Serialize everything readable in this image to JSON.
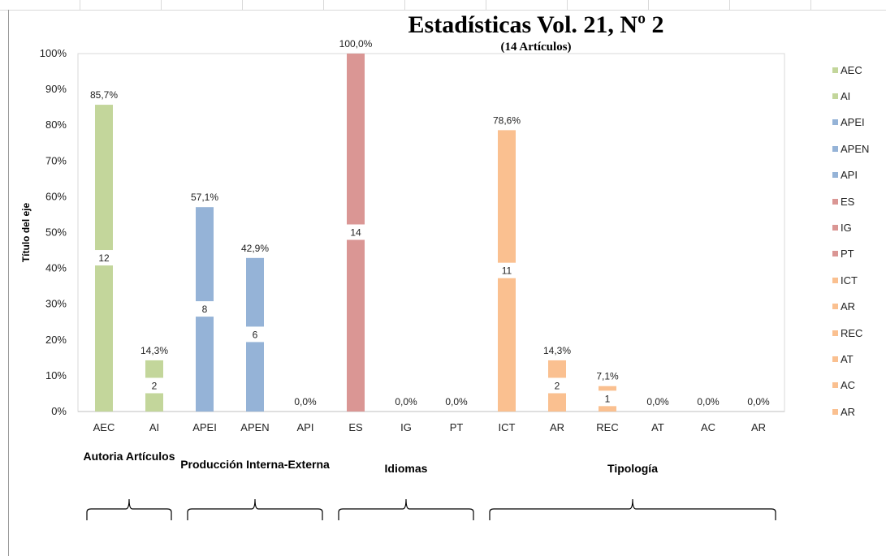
{
  "chart_data": {
    "type": "bar",
    "title": "Estadísticas Vol. 21, Nº 2",
    "subtitle": "(14 Artículos)",
    "ylabel": "Título del eje",
    "ylim": [
      0,
      100
    ],
    "yticks": [
      "0%",
      "10%",
      "20%",
      "30%",
      "40%",
      "50%",
      "60%",
      "70%",
      "80%",
      "90%",
      "100%"
    ],
    "categories": [
      "AEC",
      "AI",
      "APEI",
      "APEN",
      "API",
      "ES",
      "IG",
      "PT",
      "ICT",
      "AR",
      "REC",
      "AT",
      "AC",
      "AR"
    ],
    "values": [
      85.7,
      14.3,
      57.1,
      42.9,
      0,
      100,
      0,
      0,
      78.6,
      14.3,
      7.1,
      0,
      0,
      0
    ],
    "percent_labels": [
      "85,7%",
      "14,3%",
      "57,1%",
      "42,9%",
      "0,0%",
      "100,0%",
      "0,0%",
      "0,0%",
      "78,6%",
      "14,3%",
      "7,1%",
      "0,0%",
      "0,0%",
      "0,0%"
    ],
    "count_labels": [
      "12",
      "2",
      "8",
      "6",
      "",
      "14",
      "",
      "",
      "11",
      "2",
      "1",
      "",
      "",
      ""
    ],
    "colors": [
      "#c3d69b",
      "#c3d69b",
      "#95b3d7",
      "#95b3d7",
      "#95b3d7",
      "#da9694",
      "#da9694",
      "#da9694",
      "#fac090",
      "#fac090",
      "#fac090",
      "#fac090",
      "#fac090",
      "#fac090"
    ],
    "legend": {
      "position": "right",
      "entries": [
        "AEC",
        "AI",
        "APEI",
        "APEN",
        "API",
        "ES",
        "IG",
        "PT",
        "ICT",
        "AR",
        "REC",
        "AT",
        "AC",
        "AR"
      ]
    },
    "groups": [
      {
        "label": "Autoria Artículos",
        "start": 0,
        "end": 1
      },
      {
        "label": "Producción Interna-Externa",
        "start": 2,
        "end": 4
      },
      {
        "label": "Idiomas",
        "start": 5,
        "end": 7
      },
      {
        "label": "Tipología",
        "start": 8,
        "end": 13
      }
    ],
    "grid": false
  }
}
